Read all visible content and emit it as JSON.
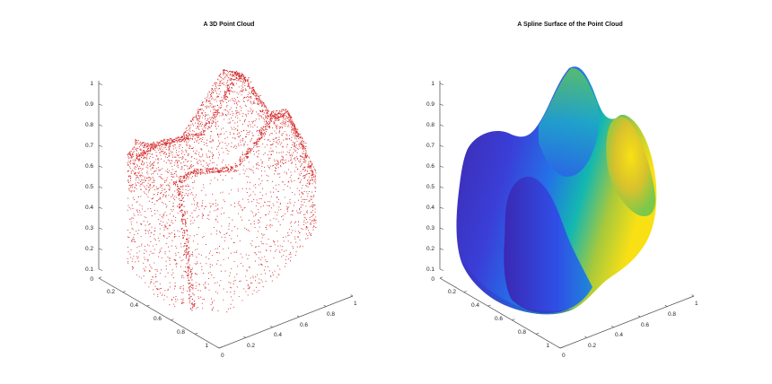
{
  "chart_data": [
    {
      "type": "scatter",
      "dimension": "3d",
      "title": "A 3D Point Cloud",
      "marker_color": "#d62728",
      "zticks": [
        "0.1",
        "0.2",
        "0.3",
        "0.4",
        "0.5",
        "0.6",
        "0.7",
        "0.8",
        "0.9",
        "1"
      ],
      "yticks": [
        "0",
        "0.2",
        "0.4",
        "0.6",
        "0.8",
        "1"
      ],
      "xticks": [
        "0",
        "0.2",
        "0.4",
        "0.6",
        "0.8",
        "1"
      ],
      "xlim": [
        0,
        1
      ],
      "ylim": [
        0,
        1
      ],
      "zlim": [
        0.1,
        1
      ],
      "grid": false
    },
    {
      "type": "surface",
      "dimension": "3d",
      "title": "A Spline Surface of the Point Cloud",
      "colormap": [
        "#3e26a8",
        "#2f5cf0",
        "#1f95d9",
        "#13b8b0",
        "#58c962",
        "#c7c02a",
        "#f9e015"
      ],
      "zticks": [
        "0.1",
        "0.2",
        "0.3",
        "0.4",
        "0.5",
        "0.6",
        "0.7",
        "0.8",
        "0.9",
        "1"
      ],
      "yticks": [
        "0",
        "0.2",
        "0.4",
        "0.6",
        "0.8",
        "1"
      ],
      "xticks": [
        "0",
        "0.2",
        "0.4",
        "0.6",
        "0.8",
        "1"
      ],
      "xlim": [
        0,
        1
      ],
      "ylim": [
        0,
        1
      ],
      "zlim": [
        0.1,
        1
      ],
      "grid": false
    }
  ]
}
